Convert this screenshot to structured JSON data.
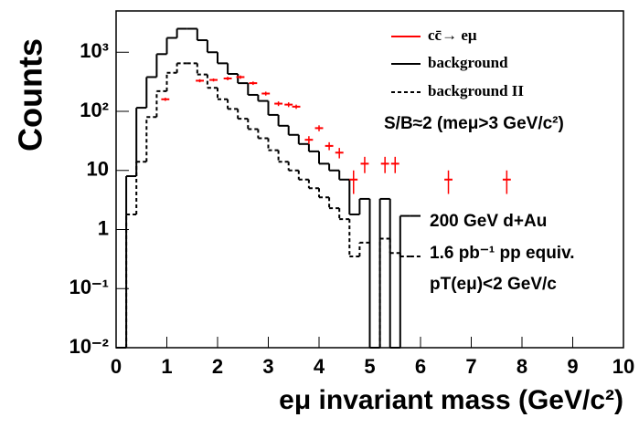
{
  "chart_data": {
    "type": "histogram",
    "xlabel": "eμ invariant mass (GeV/c²)",
    "ylabel": "Counts",
    "xlim": [
      0,
      10
    ],
    "xticks": [
      0,
      1,
      2,
      3,
      4,
      5,
      6,
      7,
      8,
      9,
      10
    ],
    "ylim": [
      0.01,
      5000
    ],
    "log_y": true,
    "yticks": [
      {
        "value": 0.01,
        "label": "10⁻²"
      },
      {
        "value": 0.1,
        "label": "10⁻¹"
      },
      1,
      10,
      {
        "value": 100,
        "label": "10²"
      },
      {
        "value": 1000,
        "label": "10³"
      }
    ],
    "bins": [
      0,
      0.2,
      0.4,
      0.6,
      0.8,
      1.0,
      1.2,
      1.4,
      1.6,
      1.8,
      2.0,
      2.2,
      2.4,
      2.6,
      2.8,
      3.0,
      3.2,
      3.4,
      3.6,
      3.8,
      4.0,
      4.2,
      4.4,
      4.6,
      4.8,
      5.0,
      5.2,
      5.4,
      5.6,
      5.8,
      6.0
    ],
    "series": [
      {
        "name": "background",
        "color": "#000000",
        "style": "solid",
        "values": [
          0,
          8,
          115,
          380,
          930,
          1750,
          2500,
          2500,
          1600,
          1000,
          650,
          430,
          300,
          190,
          150,
          87,
          57,
          40,
          28,
          21,
          13,
          10,
          7,
          1.8,
          3.3,
          0,
          3.3,
          0,
          1.7,
          1.7
        ]
      },
      {
        "name": "background II",
        "color": "#000000",
        "style": "dashed",
        "values": [
          0,
          1.8,
          14,
          80,
          220,
          450,
          650,
          650,
          420,
          250,
          160,
          110,
          75,
          50,
          35,
          22,
          14,
          10,
          7,
          5,
          3.5,
          2.3,
          1.5,
          0.35,
          0.6,
          0,
          0.7,
          0.4,
          0.35,
          0.35
        ]
      }
    ],
    "points": {
      "name": "cc̄→ eμ",
      "color": "#ff0000",
      "x": [
        0.97,
        1.65,
        1.92,
        2.2,
        2.45,
        2.7,
        2.95,
        3.2,
        3.4,
        3.55,
        3.8,
        4.0,
        4.2,
        4.4,
        4.68,
        4.9,
        5.3,
        5.5,
        6.55,
        7.7
      ],
      "values": [
        160,
        330,
        340,
        360,
        380,
        300,
        200,
        135,
        130,
        120,
        33,
        52,
        26,
        20,
        7,
        13,
        13,
        13,
        7,
        7
      ],
      "xerr": [
        0.08,
        0.08,
        0.08,
        0.08,
        0.08,
        0.08,
        0.08,
        0.08,
        0.08,
        0.08,
        0.08,
        0.08,
        0.08,
        0.08,
        0.08,
        0.08,
        0.08,
        0.08,
        0.08,
        0.08
      ],
      "yerr": [
        10,
        20,
        20,
        25,
        25,
        20,
        15,
        12,
        12,
        10,
        5,
        6,
        4,
        4,
        3,
        4,
        4,
        4,
        3,
        3
      ]
    },
    "annotations": [
      "S/B≈2 (meμ>3 GeV/c²)",
      "200 GeV d+Au",
      "1.6 pb⁻¹ pp equiv.",
      "pT(eμ)<2 GeV/c"
    ]
  }
}
